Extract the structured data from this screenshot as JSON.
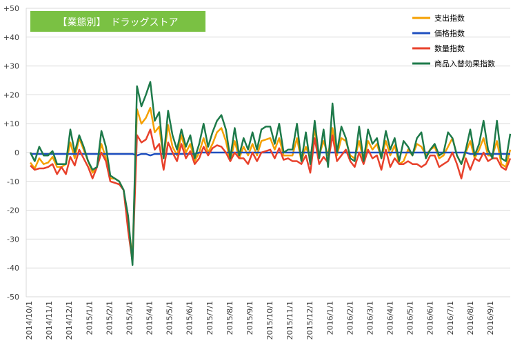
{
  "chart_data": {
    "type": "line",
    "title": "【業態別】　ドラッグストア",
    "ylim": [
      -50,
      50
    ],
    "yticks": [
      "+50",
      "+40",
      "+30",
      "+20",
      "+10",
      "0",
      "-10",
      "-20",
      "-30",
      "-40",
      "-50"
    ],
    "x_tick_labels": [
      "2014/10/1",
      "2014/11/1",
      "2014/12/1",
      "2015/1/1",
      "2015/2/1",
      "2015/3/1",
      "2015/4/1",
      "2015/5/1",
      "2015/6/1",
      "2015/7/1",
      "2015/8/1",
      "2015/9/1",
      "2015/10/1",
      "2015/11/1",
      "2015/12/1",
      "2016/1/1",
      "2016/2/1",
      "2016/3/1",
      "2016/4/1",
      "2016/5/1",
      "2016/6/1",
      "2016/7/1",
      "2016/8/1",
      "2016/9/1"
    ],
    "grid": "horizontal",
    "legend_position": "top-right",
    "series": [
      {
        "name": "支出指数",
        "color": "#f5a000",
        "values": [
          -3.5,
          -5.5,
          -2,
          -4,
          -3.5,
          -1.5,
          -5,
          -5,
          -4,
          3.5,
          -2,
          5,
          1,
          -3,
          -7,
          -5,
          3,
          -2,
          -9,
          -9,
          -10,
          -13,
          -25,
          -36,
          15,
          10,
          12,
          15.5,
          7,
          9,
          -2,
          9.5,
          2,
          -1,
          6,
          0,
          3,
          -3,
          0,
          5,
          0,
          3,
          7,
          8.5,
          4,
          -3,
          4,
          -2,
          2,
          -1,
          3,
          -1,
          4,
          4.5,
          5,
          1,
          5,
          -1,
          -1,
          -1,
          5,
          -3,
          2,
          -2,
          8,
          -1,
          4,
          -1,
          8.5,
          -1,
          5,
          4,
          -1,
          -2,
          4,
          -3,
          4,
          1,
          3,
          -2,
          4,
          -1,
          2.5,
          -4,
          -3,
          1,
          -1,
          3,
          2,
          -1,
          1,
          2,
          -2,
          -1,
          2,
          5,
          -1,
          -4,
          0,
          4,
          -2,
          1,
          5,
          -1,
          -1,
          4,
          -4,
          -5,
          1
        ],
        "marker_note": ""
      },
      {
        "name": "価格指数",
        "color": "#1f4fbf",
        "values": [
          -0.5,
          -0.5,
          -0.5,
          -0.5,
          -0.5,
          -0.5,
          -0.5,
          -0.5,
          -0.5,
          -0.5,
          -0.5,
          -0.5,
          -0.5,
          -0.5,
          -0.5,
          -0.5,
          -0.5,
          -0.5,
          -0.5,
          -0.5,
          -0.5,
          -0.5,
          -0.5,
          -0.5,
          -1,
          -0.5,
          -0.5,
          -1,
          -0.5,
          -0.5,
          -0.5,
          -0.5,
          -0.5,
          -0.5,
          -0.5,
          -0.5,
          -0.5,
          -0.5,
          0,
          0,
          0,
          0,
          0,
          0,
          0,
          0,
          0,
          0,
          0,
          0,
          0,
          0,
          0,
          0,
          0,
          0,
          0,
          0,
          0,
          0,
          0,
          0,
          0,
          0,
          0,
          0,
          0,
          0,
          0,
          0,
          0,
          0,
          0,
          0,
          0,
          0,
          0,
          0,
          0,
          0,
          0,
          0,
          0,
          0,
          0,
          0,
          0,
          0,
          0,
          0,
          0,
          0,
          0,
          0,
          0,
          0,
          0,
          0,
          0,
          -0.5,
          -0.5,
          -0.5,
          -0.5,
          -0.5,
          -0.5,
          -0.5,
          -0.5,
          -0.5,
          -0.5
        ],
        "marker_note": ""
      },
      {
        "name": "数量指数",
        "color": "#e8412b",
        "values": [
          -4.5,
          -6,
          -5.5,
          -5.5,
          -5,
          -4,
          -7.5,
          -5,
          -7.5,
          -1.5,
          -4.5,
          1,
          -2,
          -5,
          -9,
          -5,
          0,
          -3,
          -10,
          -10.5,
          -11,
          -13,
          -27,
          -38,
          6,
          3.5,
          4.5,
          8,
          1,
          3,
          -6,
          3.5,
          0,
          -3,
          3,
          -2,
          0.5,
          -4,
          -2,
          2,
          -1,
          1.5,
          2.5,
          2,
          0,
          -3,
          0,
          -2,
          -2,
          -4,
          0,
          -3,
          0,
          0.5,
          1,
          -2,
          1.5,
          -2.5,
          -2,
          -3,
          -3,
          -4,
          -1,
          -7,
          5,
          -4,
          -1.5,
          -3.5,
          6,
          -3,
          -1,
          1,
          -3,
          -5,
          0,
          -4,
          1,
          -2,
          -1,
          -6,
          1,
          -5,
          -2,
          -4,
          -4,
          -3,
          -4,
          -4,
          -5,
          -4,
          -1,
          -1,
          -5,
          -4,
          -3,
          0,
          -4,
          -9,
          -2,
          -6,
          -2,
          -3,
          0,
          -3,
          -2,
          -2,
          -5,
          -6,
          -2
        ],
        "marker_note": ""
      },
      {
        "name": "商品入替効果指数",
        "color": "#1e7a4a",
        "values": [
          0,
          -3,
          2,
          -1,
          -1,
          0.5,
          -4,
          -4,
          -4,
          8,
          0,
          6,
          2,
          -3,
          -6,
          -5,
          7.5,
          2,
          -8,
          -9,
          -10,
          -13,
          -22,
          -39,
          23,
          16,
          20,
          24.5,
          11,
          14,
          -2,
          14.5,
          6,
          1,
          8,
          2,
          6,
          -2,
          3,
          10,
          2,
          7,
          11,
          13,
          8,
          -2,
          8.5,
          -1,
          5,
          1,
          7,
          1,
          8,
          9,
          9,
          3,
          10,
          0,
          1,
          1,
          10,
          -3,
          7,
          -4,
          11,
          -2,
          8,
          -5,
          17,
          0,
          9,
          5,
          -2,
          -3,
          9,
          -3,
          8,
          3,
          5,
          -2,
          7.5,
          1,
          5,
          -3,
          4,
          2,
          -1,
          5,
          7,
          -2,
          1,
          3,
          -1,
          0,
          7,
          5,
          -1,
          -4,
          1,
          8,
          -1,
          3,
          11,
          1,
          -2,
          11,
          -2,
          -3,
          6.5
        ],
        "marker_note": ""
      }
    ]
  }
}
